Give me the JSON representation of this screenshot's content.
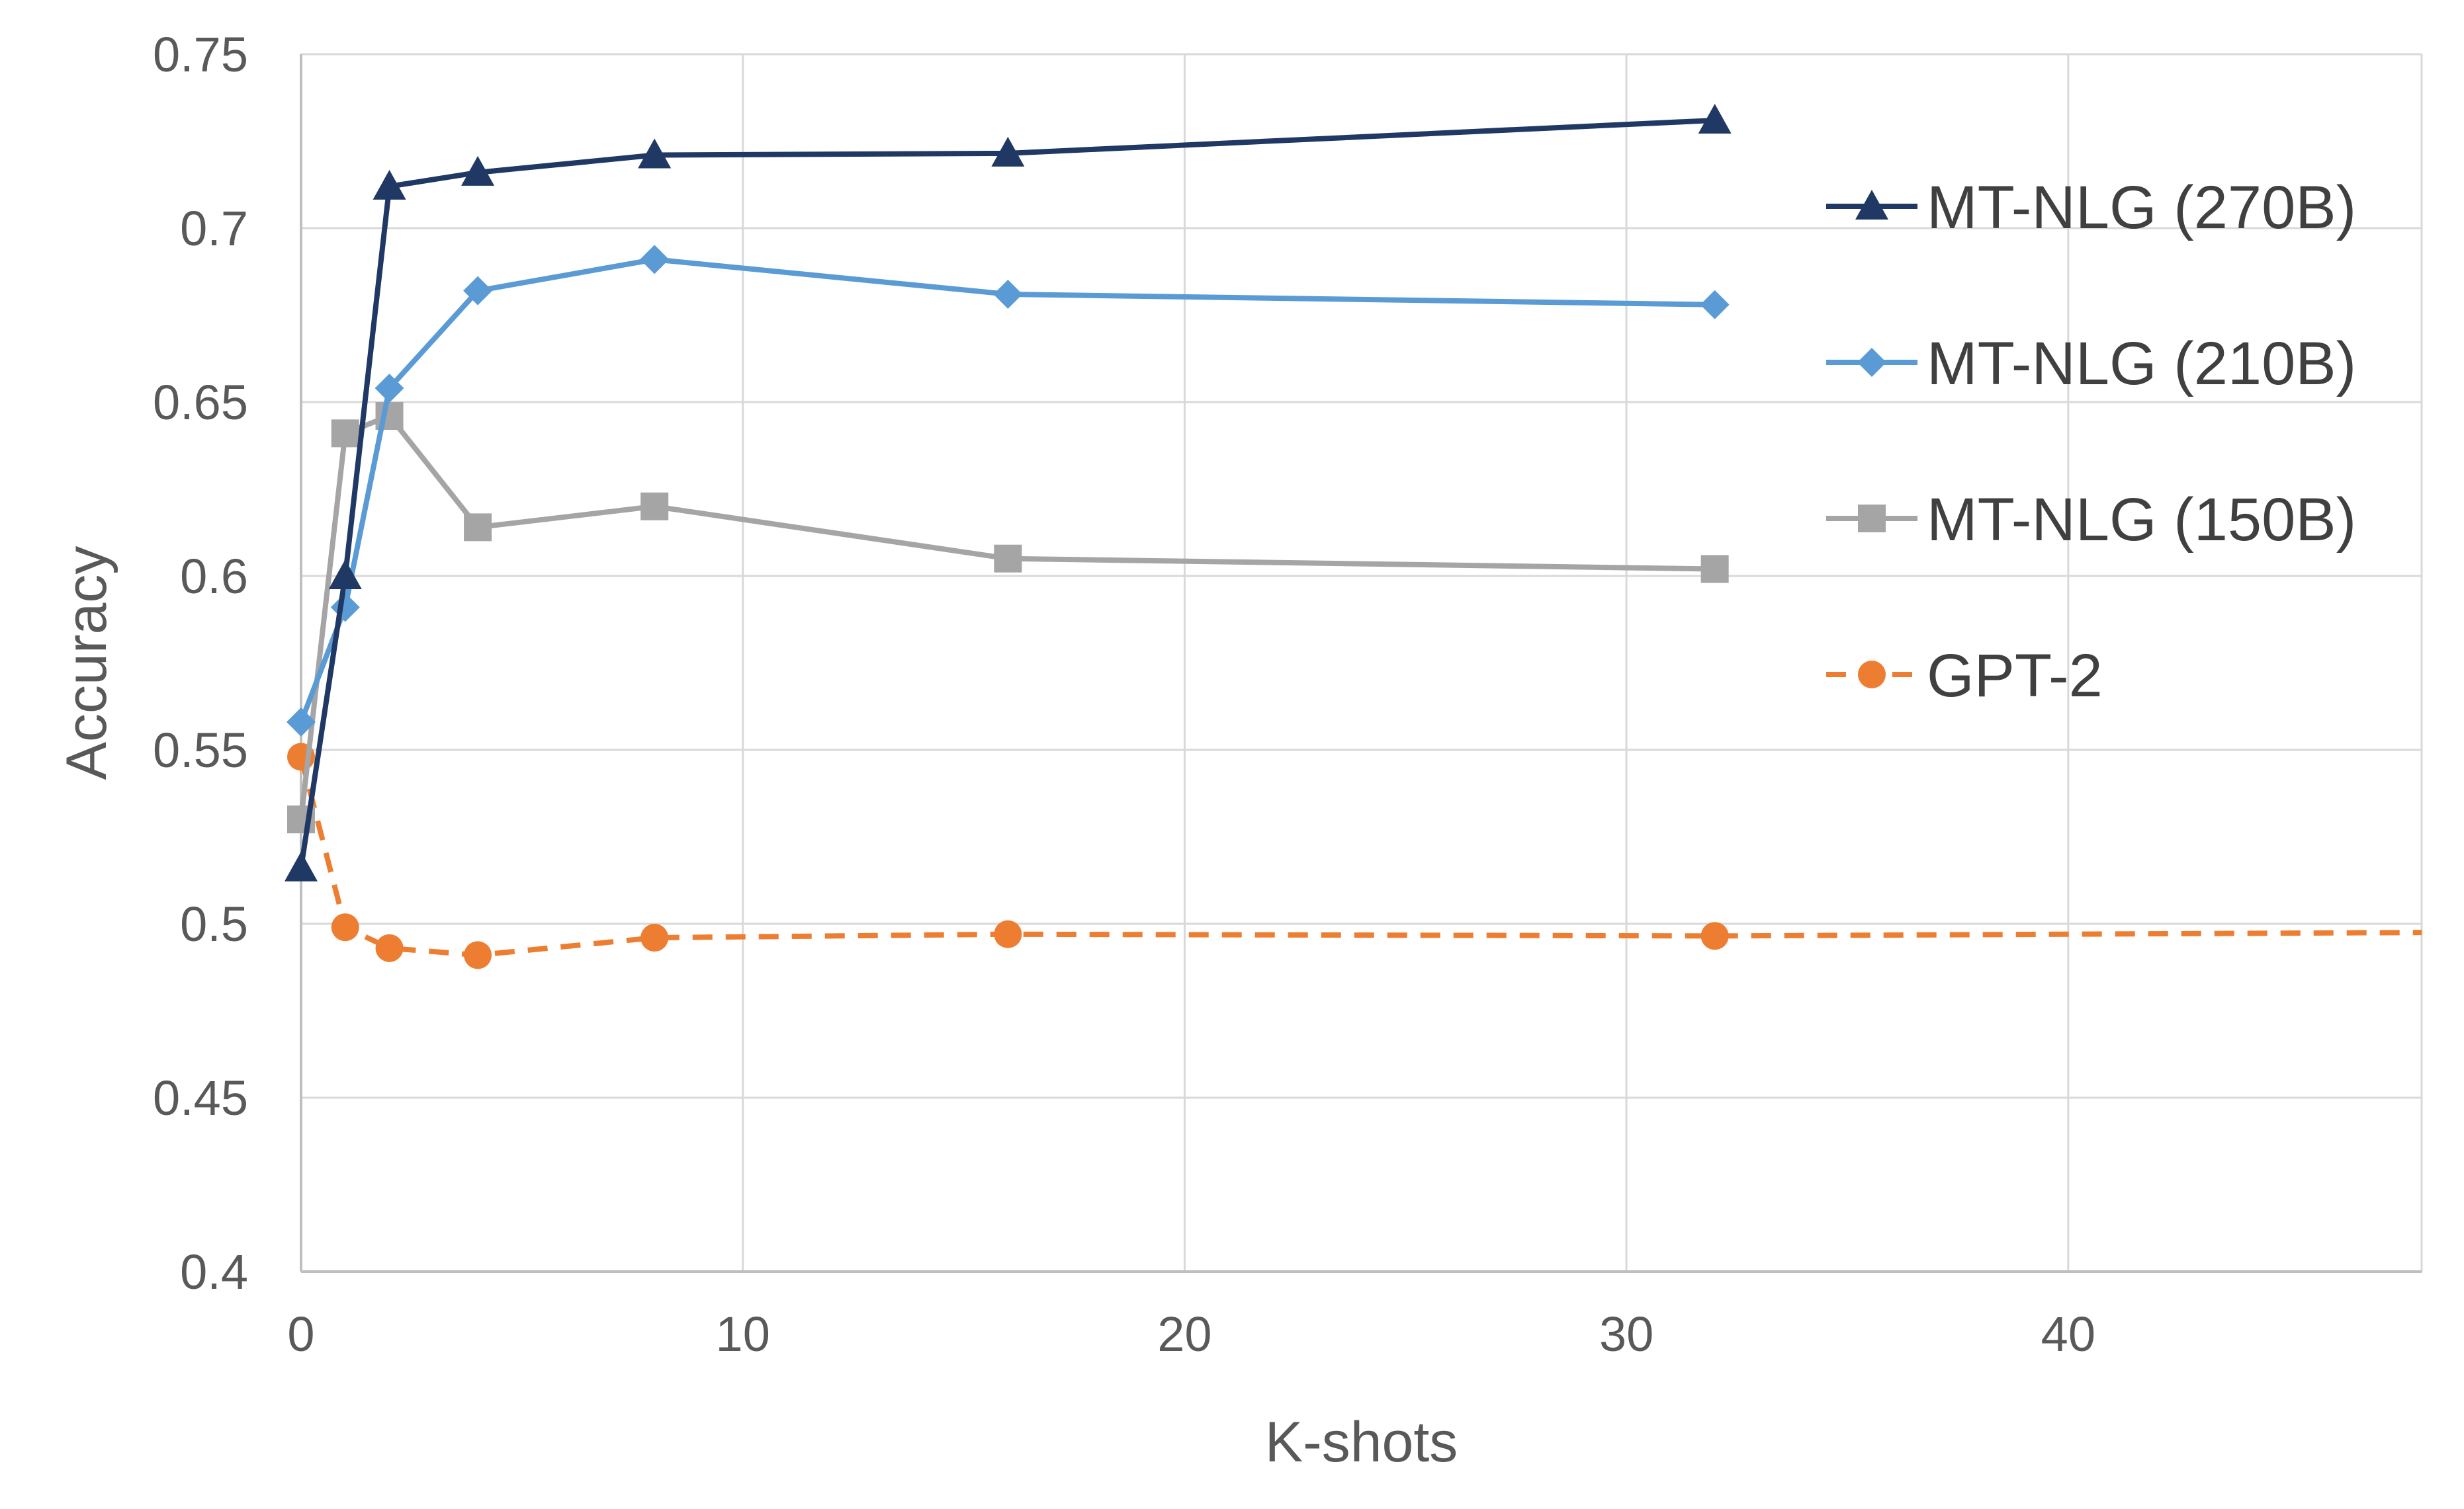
{
  "chart_data": {
    "type": "line",
    "title": "",
    "xlabel": "K-shots",
    "ylabel": "Accuracy",
    "xlim": [
      0,
      48
    ],
    "ylim": [
      0.4,
      0.75
    ],
    "x_ticks": [
      0,
      10,
      20,
      30,
      40
    ],
    "x_tick_labels": [
      "0",
      "10",
      "20",
      "30",
      "40"
    ],
    "y_ticks": [
      0.4,
      0.45,
      0.5,
      0.55,
      0.6,
      0.65,
      0.7,
      0.75
    ],
    "y_tick_labels": [
      "0.4",
      "0.45",
      "0.5",
      "0.55",
      "0.6",
      "0.65",
      "0.7",
      "0.75"
    ],
    "grid": true,
    "legend_position": "right",
    "series": [
      {
        "name": "MT-NLG (270B)",
        "color": "#203864",
        "marker": "triangle",
        "dashed": false,
        "x": [
          0,
          1,
          2,
          4,
          8,
          16,
          32
        ],
        "y": [
          0.516,
          0.6,
          0.712,
          0.716,
          0.721,
          0.7215,
          0.731
        ]
      },
      {
        "name": "MT-NLG (210B)",
        "color": "#5b9bd5",
        "marker": "diamond",
        "dashed": false,
        "x": [
          0,
          1,
          2,
          4,
          8,
          16,
          32
        ],
        "y": [
          0.558,
          0.591,
          0.654,
          0.682,
          0.691,
          0.681,
          0.678
        ]
      },
      {
        "name": "MT-NLG (150B)",
        "color": "#a5a5a5",
        "marker": "square",
        "dashed": false,
        "x": [
          0,
          1,
          2,
          4,
          8,
          16,
          32
        ],
        "y": [
          0.53,
          0.641,
          0.646,
          0.614,
          0.62,
          0.605,
          0.602
        ]
      },
      {
        "name": "GPT-2",
        "color": "#ed7d31",
        "marker": "circle",
        "dashed": true,
        "x": [
          0,
          1,
          2,
          4,
          8,
          16,
          32,
          48
        ],
        "y": [
          0.548,
          0.499,
          0.493,
          0.491,
          0.496,
          0.497,
          0.4965,
          0.4975
        ],
        "marker_count": 7
      }
    ]
  }
}
